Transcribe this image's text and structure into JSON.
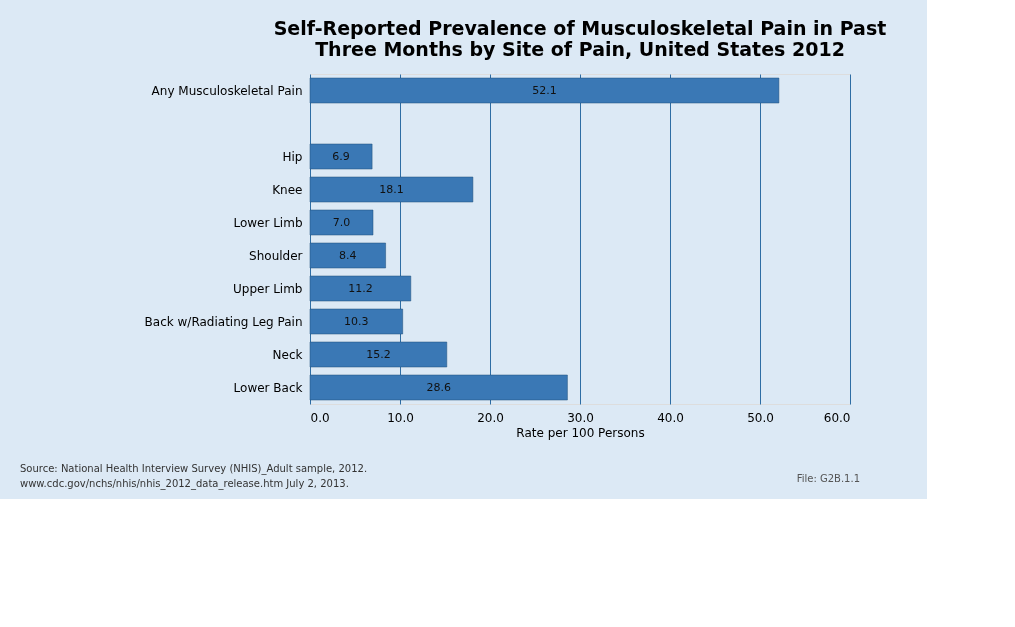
{
  "chart_data": {
    "type": "bar",
    "orientation": "horizontal",
    "title": [
      "Self-Reported Prevalence of Musculoskeletal Pain in Past",
      "Three Months by Site of Pain, United States 2012"
    ],
    "xlabel": "Rate per 100 Persons",
    "categories": [
      "Any Musculoskeletal Pain",
      null,
      "Hip",
      "Knee",
      "Lower Limb",
      "Shoulder",
      "Upper Limb",
      "Back w/Radiating Leg Pain",
      "Neck",
      "Lower Back"
    ],
    "values": [
      52.1,
      null,
      6.9,
      18.1,
      7.0,
      8.4,
      11.2,
      10.3,
      15.2,
      28.6
    ],
    "color": "#3a78b5",
    "xlim": [
      0,
      60
    ],
    "xticks": [
      {
        "value": 0,
        "label": "0.0"
      },
      {
        "value": 10,
        "label": "10.0"
      },
      {
        "value": 20,
        "label": "20.0"
      },
      {
        "value": 30,
        "label": "30.0"
      },
      {
        "value": 40,
        "label": "40.0"
      },
      {
        "value": 50,
        "label": "50.0"
      },
      {
        "value": 60,
        "label": "60.0"
      }
    ],
    "grid": "x",
    "value_labels": [
      "52.1",
      null,
      "6.9",
      "18.1",
      "7.0",
      "8.4",
      "11.2",
      "10.3",
      "15.2",
      "28.6"
    ],
    "annotations": [
      "Source: National Health Interview Survey (NHIS)_Adult sample, 2012.",
      "www.cdc.gov/nchs/nhis/nhis_2012_data_release.htm July 2, 2013.",
      "File: G2B.1.1"
    ]
  }
}
